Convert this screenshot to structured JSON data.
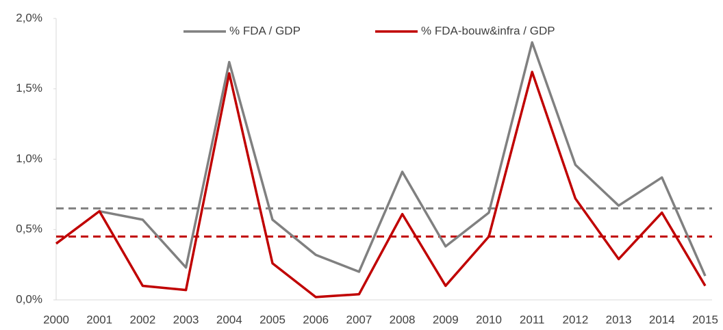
{
  "chart_data": {
    "type": "line",
    "categories": [
      "2000",
      "2001",
      "2002",
      "2003",
      "2004",
      "2005",
      "2006",
      "2007",
      "2008",
      "2009",
      "2010",
      "2011",
      "2012",
      "2013",
      "2014",
      "2015"
    ],
    "series": [
      {
        "name": "% FDA / GDP",
        "color": "#808080",
        "values": [
          null,
          0.63,
          0.57,
          0.23,
          1.69,
          0.57,
          0.32,
          0.2,
          0.91,
          0.38,
          0.62,
          1.83,
          0.96,
          0.67,
          0.87,
          0.17
        ]
      },
      {
        "name": "% FDA-bouw&infra / GDP",
        "color": "#c00000",
        "values": [
          0.4,
          0.63,
          0.1,
          0.07,
          1.61,
          0.26,
          0.02,
          0.04,
          0.61,
          0.1,
          0.45,
          1.62,
          0.72,
          0.29,
          0.62,
          0.1
        ]
      }
    ],
    "reference_lines": [
      {
        "value": 0.65,
        "color": "#808080"
      },
      {
        "value": 0.45,
        "color": "#c00000"
      }
    ],
    "ylim": [
      0,
      2
    ],
    "yticks": [
      {
        "value": 0,
        "label": "0,0%"
      },
      {
        "value": 0.5,
        "label": "0,5%"
      },
      {
        "value": 1,
        "label": "1,0%"
      },
      {
        "value": 1.5,
        "label": "1,5%"
      },
      {
        "value": 2,
        "label": "2,0%"
      }
    ],
    "legend": "top"
  }
}
